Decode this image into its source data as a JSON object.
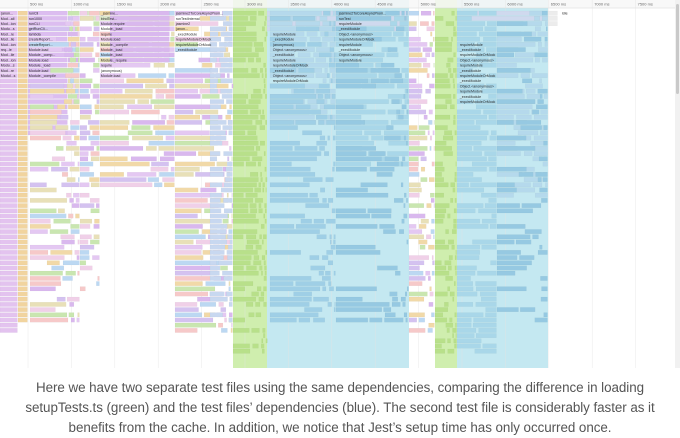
{
  "profiler": {
    "ruler_ticks": [
      "500 ms",
      "1000 ms",
      "1500 ms",
      "2000 ms",
      "2500 ms",
      "3000 ms",
      "3500 ms",
      "4000 ms",
      "4500 ms",
      "5000 ms",
      "5500 ms",
      "6000 ms",
      "6500 ms",
      "7000 ms",
      "7500 ms"
    ],
    "frame_labels": {
      "top_left": [
        "(anon...",
        "Mod...all",
        "Mod...ion",
        "Modu...s",
        "Mod...re",
        "Mod...ile",
        "Mod...ion",
        "req...le",
        "Mod...ile",
        "Mod...ion",
        "Modu...s",
        "Mod...re",
        "Modul...s"
      ],
      "col2": [
        "runCli",
        "run1000",
        "runCLI",
        "getRunCli...",
        "lambda",
        "createReport...",
        "createReport...",
        "Module.load",
        "Module._comp...",
        "Module.load",
        "Module._load",
        "Module.load",
        "Module._compile"
      ],
      "col3": [
        "_jasmine...",
        "bindTest...",
        "Module.require",
        "Module._load",
        "require",
        "Module.load",
        "Module._compile",
        "Module._load",
        "Module._load",
        "Module._require",
        "require",
        "(anonymous)",
        "Module.load"
      ],
      "mid_top": [
        "jasmine2ToCoreAsyncProm...",
        "runTestInternal",
        "jasmine2",
        "(anon...",
        "_execModule",
        "requireModuleOrMock",
        "requireModuleOrMock",
        "_execModule"
      ],
      "mid_chain": [
        "requireModule",
        "_execModule",
        "(anonymous)",
        "Object.<anonymous>",
        "_execModule",
        "requireModule",
        "requireModuleOrMock",
        "_execModule",
        "Object.<anonymous>",
        "requireModuleOrMock"
      ],
      "right_top": [
        "jasmine2ToCoreAsyncProm...",
        "runTest",
        "requireModule",
        "_execModule",
        "Object.<anonymous>",
        "requireModuleOrMock",
        "requireModule",
        "_execModule",
        "Object.<anonymous>",
        "requireModule"
      ],
      "right_chain": [
        "requireModule",
        "_execModule",
        "requireModuleOrMock",
        "Object.<anonymous>",
        "requireModule",
        "_execModule",
        "requireModuleOrMock",
        "_execModule",
        "Object.<anonymous>",
        "requireModule",
        "_execModule",
        "requireModuleOrMock"
      ],
      "far_right": [
        "Idle"
      ]
    },
    "highlights": {
      "setup_color": "#a7e06b",
      "deps_color": "#7ccbe0"
    }
  },
  "caption": {
    "line1": "Here we have two separate test files using the same dependencies, comparing the difference in loading",
    "line2": "setupTests.ts (green) and the test files’ dependencies (blue). The second test file is considerably faster as it",
    "line3": "benefits from the cache. In addition, we notice that Jest’s setup time has only occurred once."
  }
}
